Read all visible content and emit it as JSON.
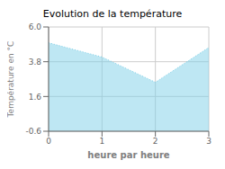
{
  "chart_data": {
    "type": "area",
    "title": "Evolution de la température",
    "xlabel": "heure par heure",
    "ylabel": "Température en °C",
    "x": [
      0,
      1,
      2,
      3
    ],
    "values": [
      5.0,
      4.1,
      2.5,
      4.7
    ],
    "xlim": [
      0,
      3
    ],
    "ylim": [
      -0.6,
      6.0
    ],
    "xticks": [
      0,
      1,
      2,
      3
    ],
    "yticks": [
      -0.6,
      1.6,
      3.8,
      {
        "value": 6.0,
        "label": "6.0"
      }
    ],
    "color": "#7dd0e8",
    "line_style": "dotted",
    "grid": true
  }
}
